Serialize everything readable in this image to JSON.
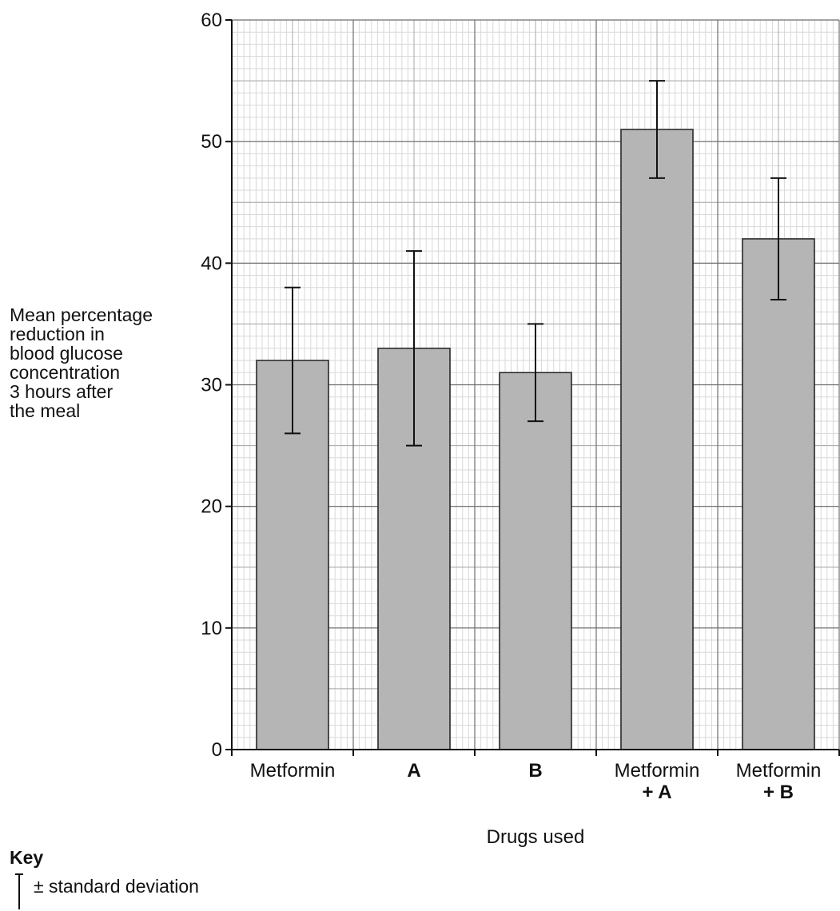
{
  "chart_data": {
    "type": "bar",
    "categories": [
      [
        "Metformin"
      ],
      [
        "A"
      ],
      [
        "B"
      ],
      [
        "Metformin",
        "+ A"
      ],
      [
        "Metformin",
        "+ B"
      ]
    ],
    "category_bold": [
      [
        false
      ],
      [
        true
      ],
      [
        true
      ],
      [
        false,
        true
      ],
      [
        false,
        true
      ]
    ],
    "values": [
      32,
      33,
      31,
      51,
      42
    ],
    "error_bars": [
      {
        "low": 26,
        "high": 38
      },
      {
        "low": 25,
        "high": 41
      },
      {
        "low": 27,
        "high": 35
      },
      {
        "low": 47,
        "high": 55
      },
      {
        "low": 37,
        "high": 47
      }
    ],
    "ylim": [
      0,
      60
    ],
    "yticks": [
      0,
      10,
      20,
      30,
      40,
      50,
      60
    ],
    "ylabel_lines": [
      "Mean percentage",
      "reduction in",
      "blood glucose",
      "concentration",
      "3 hours after",
      "the meal"
    ],
    "xlabel": "Drugs used",
    "grid": true,
    "bar_color": "#b5b5b5",
    "key": {
      "title": "Key",
      "entry": "± standard deviation"
    }
  }
}
